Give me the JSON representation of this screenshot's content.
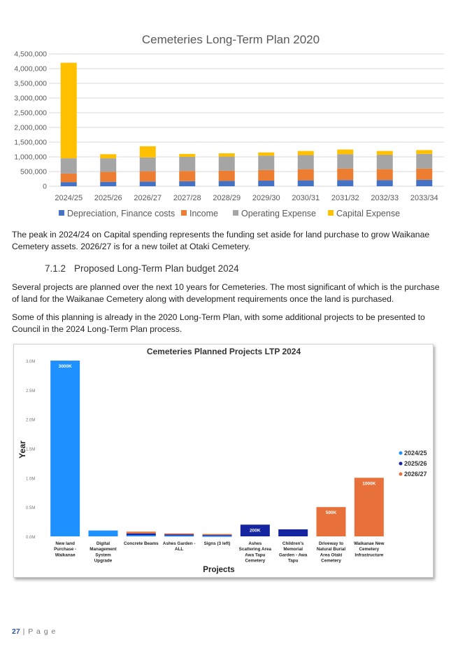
{
  "chart_data": [
    {
      "type": "bar",
      "stacked": true,
      "title": "Cemeteries Long-Term Plan 2020",
      "categories": [
        "2024/25",
        "2025/26",
        "2026/27",
        "2027/28",
        "2028/29",
        "2029/30",
        "2030/31",
        "2031/32",
        "2032/33",
        "2033/34"
      ],
      "ylim": [
        0,
        4500000
      ],
      "yticks": [
        "0",
        "500,000",
        "1,000,000",
        "1,500,000",
        "2,000,000",
        "2,500,000",
        "3,000,000",
        "3,500,000",
        "4,000,000",
        "4,500,000"
      ],
      "ytick_values": [
        0,
        500000,
        1000000,
        1500000,
        2000000,
        2500000,
        3000000,
        3500000,
        4000000,
        4500000
      ],
      "grid": true,
      "legend_position": "bottom",
      "series": [
        {
          "name": "Depreciation, Finance costs",
          "color": "#4472c4",
          "values": [
            140000,
            150000,
            160000,
            170000,
            180000,
            190000,
            200000,
            210000,
            210000,
            220000
          ]
        },
        {
          "name": "Income",
          "color": "#ed7d31",
          "values": [
            290000,
            340000,
            350000,
            350000,
            350000,
            360000,
            380000,
            390000,
            370000,
            380000
          ]
        },
        {
          "name": "Operating Expense",
          "color": "#a5a5a5",
          "values": [
            520000,
            460000,
            470000,
            480000,
            480000,
            490000,
            480000,
            490000,
            490000,
            500000
          ]
        },
        {
          "name": "Capital Expense",
          "color": "#ffc000",
          "values": [
            3250000,
            140000,
            380000,
            100000,
            110000,
            110000,
            140000,
            160000,
            130000,
            130000
          ]
        }
      ]
    },
    {
      "type": "bar",
      "stacked": true,
      "title": "Cemeteries Planned Projects LTP 2024",
      "xlabel": "Projects",
      "ylabel": "Year",
      "categories": [
        "New land Purchase - Waikanae",
        "Digital Management System Upgrade",
        "Concrete Beams",
        "Ashes Garden - ALL",
        "Signs (3 left)",
        "Ashes Scattering Area Awa Tapu Cemetery",
        "Children's Memorial Garden - Awa Tapu",
        "Driveway to Natural Burial Area Otaki Cemetery",
        "Waikanae New Cemetery Infrastructure"
      ],
      "ylim": [
        0,
        3000000
      ],
      "yticks": [
        "0.0M",
        "0.5M",
        "1.0M",
        "1.5M",
        "2.0M",
        "2.5M",
        "3.0M"
      ],
      "ytick_values": [
        0,
        500000,
        1000000,
        1500000,
        2000000,
        2500000,
        3000000
      ],
      "grid": false,
      "legend_position": "right",
      "series": [
        {
          "name": "2024/25",
          "color": "#1e90ff",
          "values": [
            3000000,
            100000,
            20000,
            15000,
            10000,
            0,
            0,
            0,
            0
          ]
        },
        {
          "name": "2025/26",
          "color": "#1525a0",
          "values": [
            0,
            0,
            30000,
            20000,
            20000,
            200000,
            120000,
            0,
            0
          ]
        },
        {
          "name": "2026/27",
          "color": "#e8703a",
          "values": [
            0,
            0,
            30000,
            15000,
            10000,
            0,
            0,
            500000,
            1000000
          ]
        }
      ],
      "data_labels": [
        {
          "series": "2024/25",
          "category": "New land Purchase - Waikanae",
          "text": "3000K"
        },
        {
          "series": "2025/26",
          "category": "Ashes Scattering Area Awa Tapu Cemetery",
          "text": "200K"
        },
        {
          "series": "2026/27",
          "category": "Driveway to Natural Burial Area Otaki Cemetery",
          "text": "500K"
        },
        {
          "series": "2026/27",
          "category": "Waikanae New Cemetery Infrastructure",
          "text": "1000K"
        }
      ]
    }
  ],
  "paragraphs": {
    "p1": "The peak in 2024/24 on Capital spending represents the funding set aside for land purchase to grow Waikanae Cemetery assets. 2026/27 is for a new toilet at Otaki Cemetery.",
    "p2": "Several projects are planned over the next 10 years for Cemeteries.  The most significant of which is the purchase of land for the Waikanae Cemetery along with development requirements once the land is purchased.",
    "p3": "Some of this planning is already in the 2020 Long-Term Plan, with some additional projects to be presented to Council in the 2024 Long-Term Plan process."
  },
  "section": {
    "number": "7.1.2",
    "title": "Proposed Long-Term Plan budget 2024"
  },
  "footer": {
    "page_number": "27",
    "separator": "|",
    "page_word": "P a g e"
  }
}
